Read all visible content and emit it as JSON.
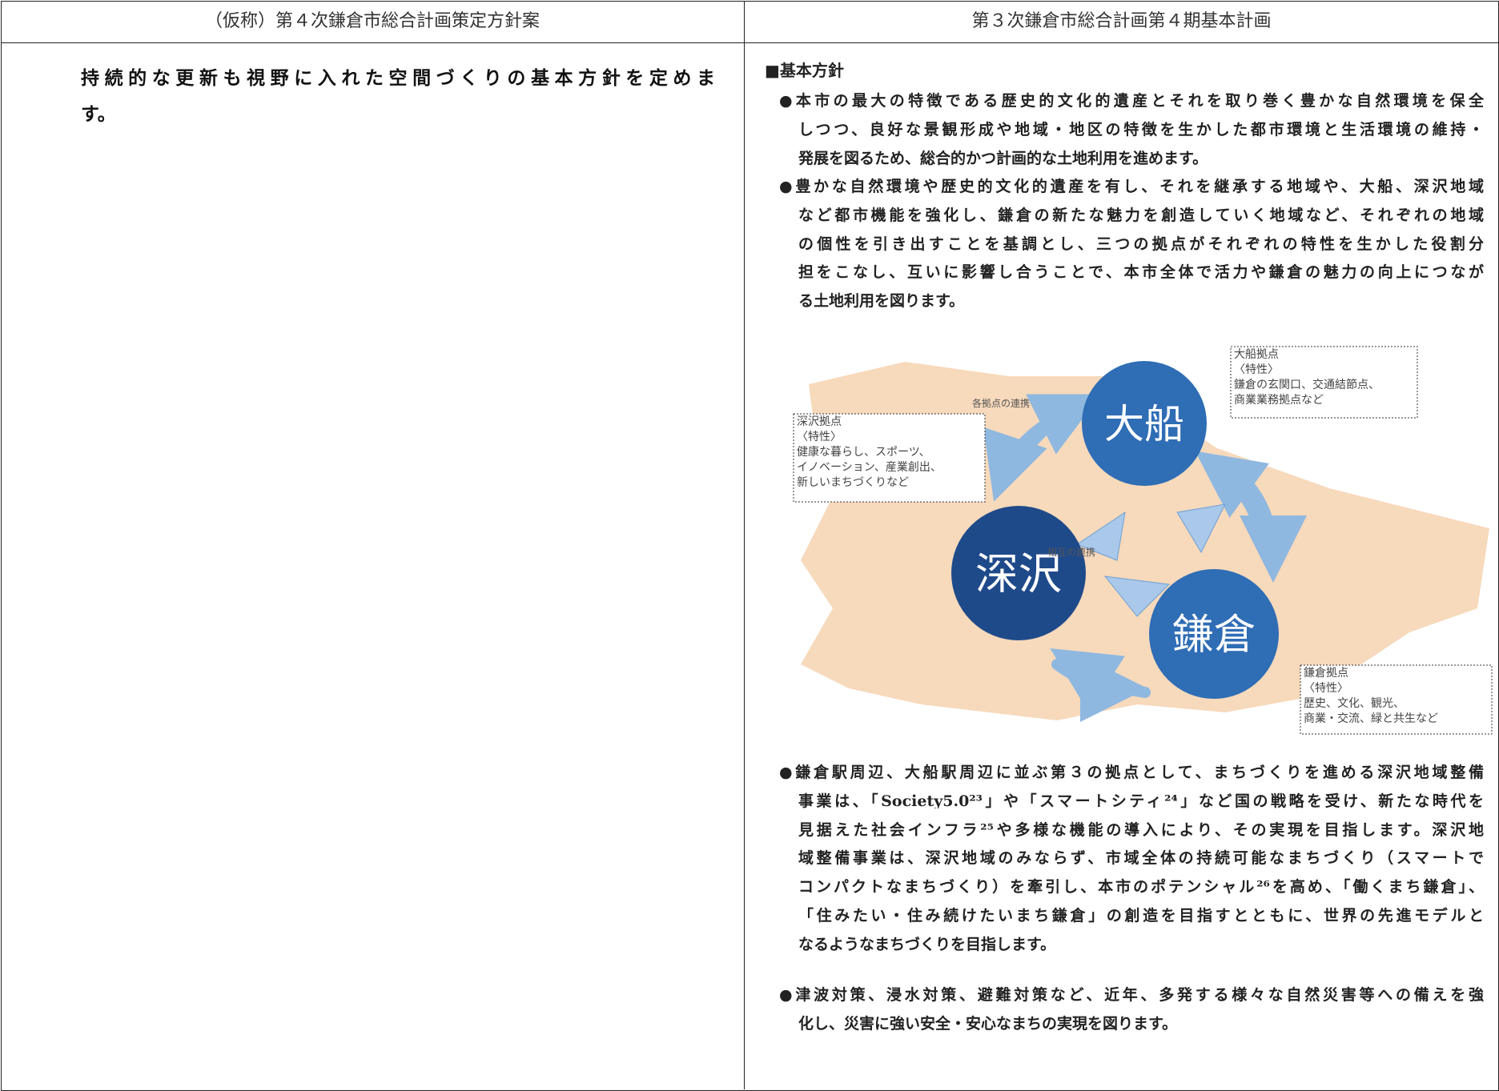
{
  "header": {
    "left": "（仮称）第４次鎌倉市総合計画策定方針案",
    "right": "第３次鎌倉市総合計画第４期基本計画"
  },
  "left_cell": {
    "lines": [
      "持続的な更新も視野に入れた空間づくりの基本方針を定めま",
      "す。"
    ]
  },
  "right_cell": {
    "heading": "■基本方針",
    "bullets": [
      {
        "lines": [
          "●本市の最大の特徴である歴史的文化的遺産とそれを取り巻く豊かな自然環境を保全",
          "しつつ、良好な景観形成や地域・地区の特徴を生かした都市環境と生活環境の維持・",
          "発展を図るため、総合的かつ計画的な土地利用を進めます。"
        ]
      },
      {
        "lines": [
          "●豊かな自然環境や歴史的文化的遺産を有し、それを継承する地域や、大船、深沢地域",
          "など都市機能を強化し、鎌倉の新たな魅力を創造していく地域など、それぞれの地域",
          "の個性を引き出すことを基調とし、三つの拠点がそれぞれの特性を生かした役割分",
          "担をこなし、互いに影響し合うことで、本市全体で活力や鎌倉の魅力の向上につなが",
          "る土地利用を図ります。"
        ]
      }
    ],
    "diagram": {
      "nodes": [
        {
          "label": "大船",
          "note": [
            "大船拠点",
            "〈特性〉",
            "鎌倉の玄関口、交通結節点、",
            "商業業務拠点など"
          ]
        },
        {
          "label": "深沢",
          "note": [
            "深沢拠点",
            "〈特性〉",
            "健康な暮らし、スポーツ、",
            "イノベーション、産業創出、",
            "新しいまちづくりなど"
          ]
        },
        {
          "label": "鎌倉",
          "note": [
            "鎌倉拠点",
            "〈特性〉",
            "歴史、文化、観光、",
            "商業・交流、緑と共生など"
          ]
        }
      ],
      "links": [
        "各拠点の連携",
        "相互の連携"
      ]
    },
    "bullets_after": [
      {
        "lines": [
          "●鎌倉駅周辺、大船駅周辺に並ぶ第３の拠点として、まちづくりを進める深沢地域整備",
          "事業は、「Society5.0²³」や「スマートシティ²⁴」など国の戦略を受け、新たな時代を",
          "見据えた社会インフラ²⁵や多様な機能の導入により、その実現を目指します。深沢地",
          "域整備事業は、深沢地域のみならず、市域全体の持続可能なまちづくり（スマートで",
          "コンパクトなまちづくり）を牽引し、本市のポテンシャル²⁶を高め、「働くまち鎌倉」、",
          "「住みたい・住み続けたいまち鎌倉」の創造を目指すとともに、世界の先進モデルと",
          "なるようなまちづくりを目指します。"
        ]
      },
      {
        "lines": [
          "●津波対策、浸水対策、避難対策など、近年、多発する様々な自然災害等への備えを強",
          "化し、災害に強い安全・安心なまちの実現を図ります。"
        ]
      }
    ]
  }
}
